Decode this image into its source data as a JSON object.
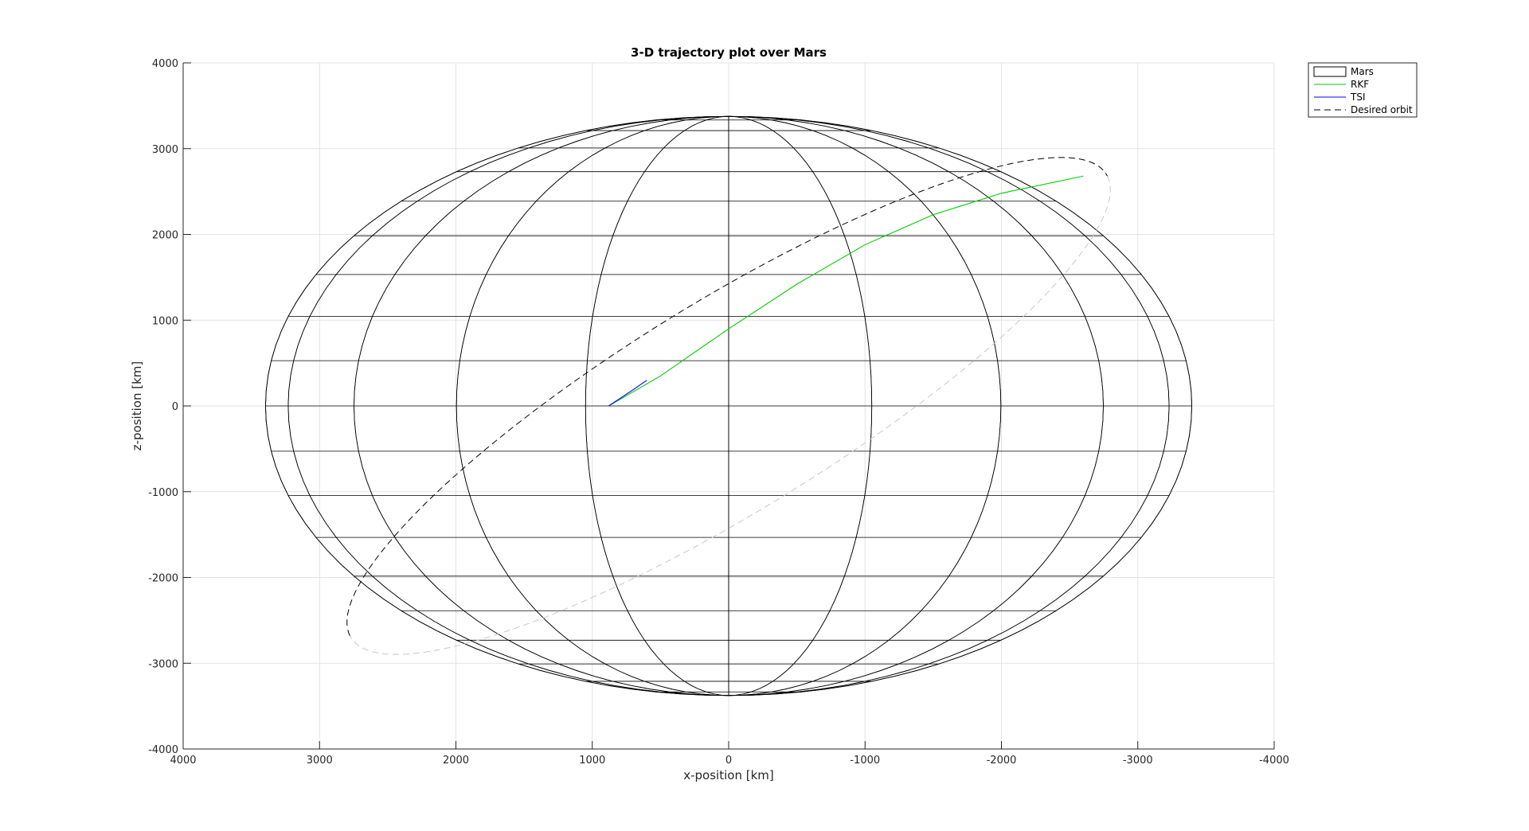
{
  "chart_data": {
    "type": "line",
    "title": "3-D trajectory plot over Mars",
    "xlabel": "x-position [km]",
    "ylabel": "z-position [km]",
    "xlim": [
      4000,
      -4000
    ],
    "ylim": [
      -4000,
      4000
    ],
    "x_reversed": true,
    "xticks": [
      4000,
      3000,
      2000,
      1000,
      0,
      -1000,
      -2000,
      -3000,
      -4000
    ],
    "yticks": [
      4000,
      3000,
      2000,
      1000,
      0,
      -1000,
      -2000,
      -3000,
      -4000
    ],
    "grid": true,
    "legend_position": "top-right, outside",
    "mars": {
      "radius_x": 3396,
      "radius_z": 3376,
      "meridians": 20,
      "parallels": 20,
      "edge_color": "#000000"
    },
    "series": [
      {
        "name": "Mars",
        "style": "surface-wireframe",
        "color": "#000000"
      },
      {
        "name": "RKF",
        "style": "solid",
        "color": "#00cc00",
        "points": [
          [
            880,
            0
          ],
          [
            500,
            350
          ],
          [
            0,
            900
          ],
          [
            -500,
            1420
          ],
          [
            -1000,
            1880
          ],
          [
            -1500,
            2230
          ],
          [
            -2000,
            2480
          ],
          [
            -2600,
            2680
          ]
        ]
      },
      {
        "name": "TSI",
        "style": "solid",
        "color": "#0000ff",
        "points": [
          [
            880,
            0
          ],
          [
            700,
            190
          ],
          [
            600,
            300
          ]
        ]
      },
      {
        "name": "Desired orbit",
        "style": "dashed",
        "color": "#000000",
        "orbit": {
          "center": [
            0,
            0
          ],
          "axis_u": [
            -2777,
            2680
          ],
          "axis_v": [
            -350,
            -1100
          ]
        }
      }
    ]
  }
}
